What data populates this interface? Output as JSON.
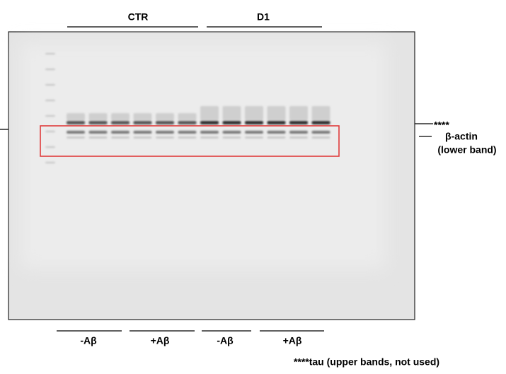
{
  "header": {
    "groups": [
      "CTR",
      "D1"
    ]
  },
  "footer": {
    "conditions": [
      "-Aβ",
      "+Aβ",
      "-Aβ",
      "+Aβ"
    ],
    "note": "****tau (upper bands, not used)"
  },
  "side_labels": {
    "marker": "****",
    "band": "β-actin",
    "band_note": "(lower band)"
  }
}
